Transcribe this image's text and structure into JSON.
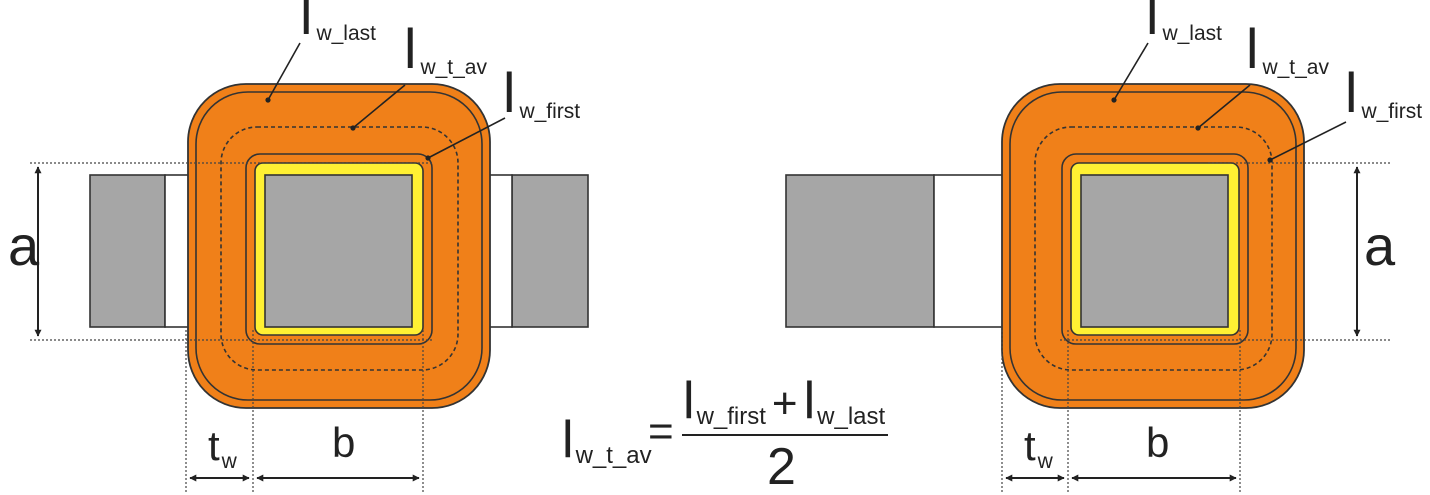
{
  "colors": {
    "winding": "#F08019",
    "insulation": "#FFF033",
    "core": "#A6A6A6",
    "outline": "#333333",
    "background": "#FFFFFF"
  },
  "left_view": {
    "labels": {
      "l_last": "l",
      "l_last_sub": "w_last",
      "l_avg": "l",
      "l_avg_sub": "w_t_av",
      "l_first": "l",
      "l_first_sub": "w_first",
      "a": "a",
      "tw": "t",
      "tw_sub": "w",
      "b": "b"
    }
  },
  "right_view": {
    "labels": {
      "l_last": "l",
      "l_last_sub": "w_last",
      "l_avg": "l",
      "l_avg_sub": "w_t_av",
      "l_first": "l",
      "l_first_sub": "w_first",
      "a": "a",
      "tw": "t",
      "tw_sub": "w",
      "b": "b"
    }
  },
  "formula": {
    "lhs": "l",
    "lhs_sub": "w_t_av",
    "equals": "=",
    "num_l1": "l",
    "num_l1_sub": "w_first",
    "plus": "+",
    "num_l2": "l",
    "num_l2_sub": "w_last",
    "denominator": "2"
  }
}
